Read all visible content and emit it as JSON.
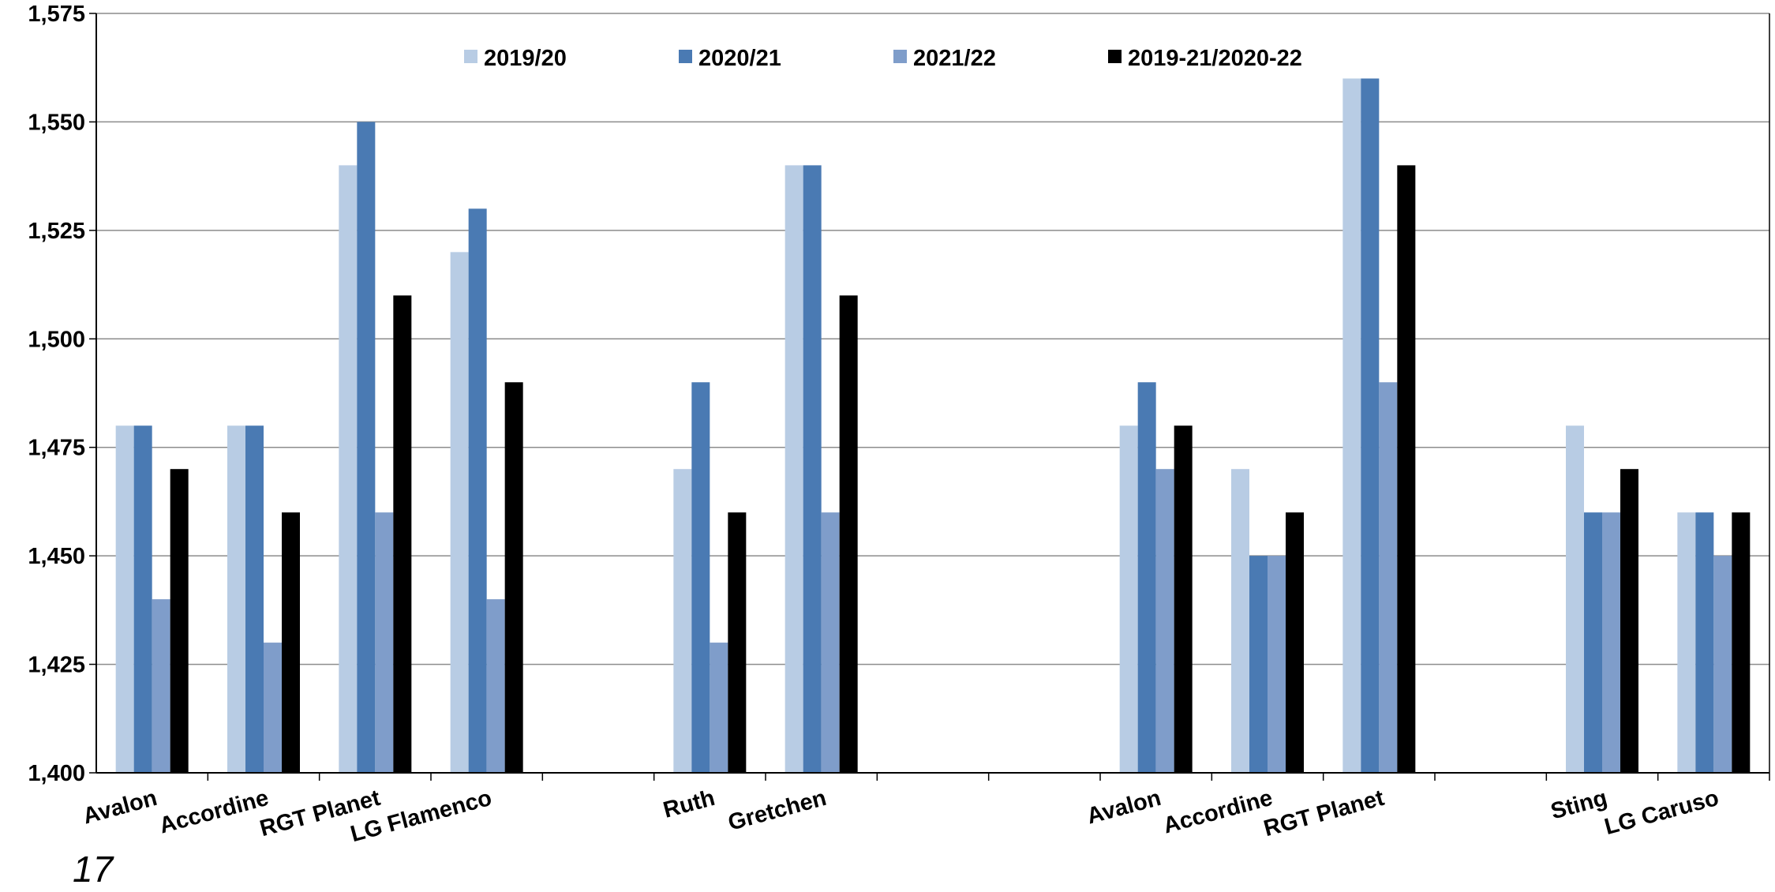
{
  "chart_data": {
    "type": "bar",
    "title": "",
    "xlabel": "",
    "ylabel": "",
    "ylim": [
      1400,
      1575
    ],
    "yticks": [
      "1,400",
      "1,425",
      "1,450",
      "1,475",
      "1,500",
      "1,525",
      "1,550",
      "1,575"
    ],
    "grid": true,
    "legend_position": "top",
    "categories": [
      "Avalon",
      "Accordine",
      "RGT Planet",
      "LG Flamenco",
      "",
      "Ruth",
      "Gretchen",
      "",
      "",
      "Avalon",
      "Accordine",
      "RGT Planet",
      "",
      "Sting",
      "LG Caruso"
    ],
    "series": [
      {
        "name": "2019/20",
        "color": "#b8cce4",
        "values": [
          1480,
          1480,
          1540,
          1520,
          null,
          1470,
          1540,
          null,
          null,
          1480,
          1470,
          1560,
          null,
          1480,
          1460
        ]
      },
      {
        "name": "2020/21",
        "color": "#4a7ab3",
        "values": [
          1480,
          1480,
          1550,
          1530,
          null,
          1490,
          1540,
          null,
          null,
          1490,
          1450,
          1560,
          null,
          1460,
          1460
        ]
      },
      {
        "name": "2021/22",
        "color": "#7f9dca",
        "values": [
          1440,
          1430,
          1460,
          1440,
          null,
          1430,
          1460,
          null,
          null,
          1470,
          1450,
          1490,
          null,
          1460,
          1450
        ]
      },
      {
        "name": "2019-21/2020-22",
        "color": "#000000",
        "values": [
          1470,
          1460,
          1510,
          1490,
          null,
          1460,
          1510,
          null,
          null,
          1480,
          1460,
          1540,
          null,
          1470,
          1460
        ]
      }
    ]
  },
  "page_number": "17"
}
